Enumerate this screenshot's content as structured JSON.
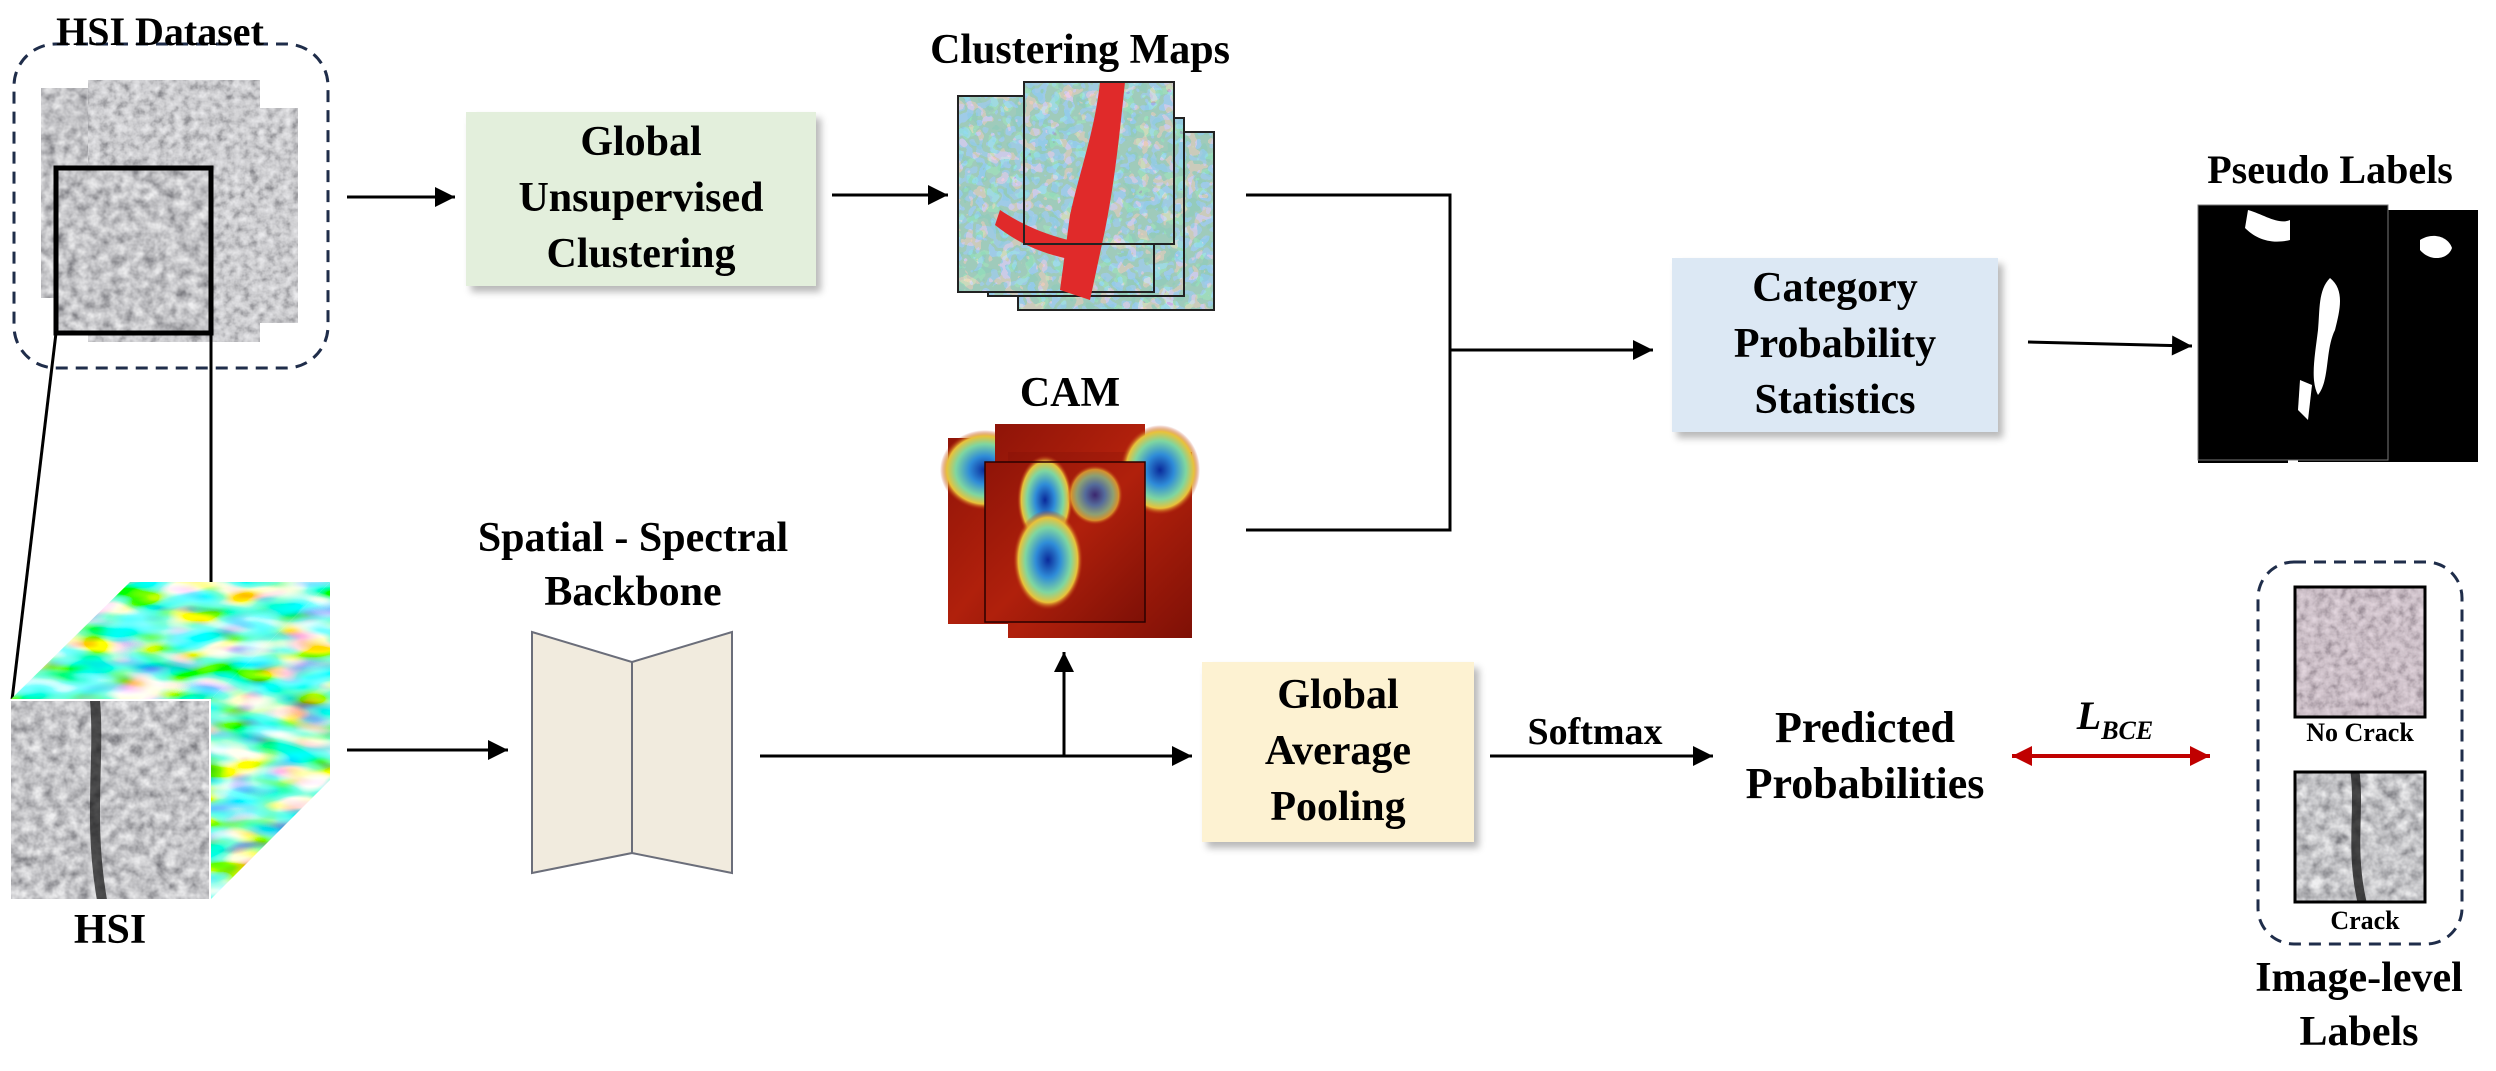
{
  "labels": {
    "hsi_dataset": "HSI Dataset",
    "clustering_maps": "Clustering Maps",
    "cam": "CAM",
    "pseudo_labels": "Pseudo Labels",
    "hsi": "HSI",
    "backbone_line1": "Spatial - Spectral",
    "backbone_line2": "Backbone",
    "softmax": "Softmax",
    "predicted_line1": "Predicted",
    "predicted_line2": "Probabilities",
    "loss_main": "L",
    "loss_sub": "BCE",
    "no_crack": "No Crack",
    "crack": "Crack",
    "image_level_line1": "Image-level",
    "image_level_line2": "Labels"
  },
  "boxes": {
    "global_clustering": [
      "Global",
      "Unsupervised",
      "Clustering"
    ],
    "category_probability": [
      "Category",
      "Probability",
      "Statistics"
    ],
    "global_average_pooling": [
      "Global",
      "Average",
      "Pooling"
    ]
  },
  "colors": {
    "clustering_box": "#e3efdc",
    "category_box": "#dce8f4",
    "pooling_box": "#fdf2d2",
    "backbone_fill": "#f1ebde",
    "dashed_border": "#1f2d4a",
    "bce_arrow": "#c00000"
  }
}
